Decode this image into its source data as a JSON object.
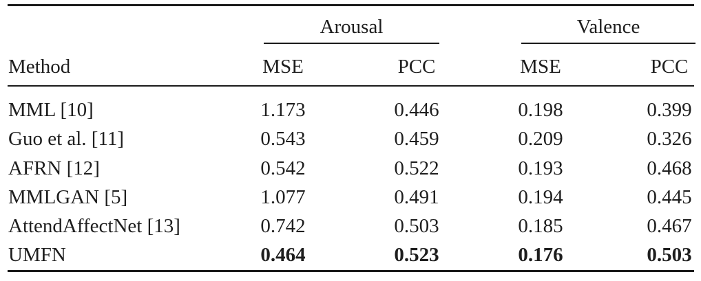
{
  "colors": {
    "background": "#ffffff",
    "text": "#1e1e1e",
    "rule": "#1a1a1a"
  },
  "table": {
    "group_headers": {
      "arousal": "Arousal",
      "valence": "Valence"
    },
    "col_headers": {
      "method": "Method",
      "arousal_mse": "MSE",
      "arousal_pcc": "PCC",
      "valence_mse": "MSE",
      "valence_pcc": "PCC"
    },
    "rows": [
      {
        "method": "MML [10]",
        "arousal_mse": "1.173",
        "arousal_pcc": "0.446",
        "valence_mse": "0.198",
        "valence_pcc": "0.399",
        "bold": false
      },
      {
        "method": "Guo et al. [11]",
        "arousal_mse": "0.543",
        "arousal_pcc": "0.459",
        "valence_mse": "0.209",
        "valence_pcc": "0.326",
        "bold": false
      },
      {
        "method": "AFRN [12]",
        "arousal_mse": "0.542",
        "arousal_pcc": "0.522",
        "valence_mse": "0.193",
        "valence_pcc": "0.468",
        "bold": false
      },
      {
        "method": "MMLGAN [5]",
        "arousal_mse": "1.077",
        "arousal_pcc": "0.491",
        "valence_mse": "0.194",
        "valence_pcc": "0.445",
        "bold": false
      },
      {
        "method": "AttendAffectNet [13]",
        "arousal_mse": "0.742",
        "arousal_pcc": "0.503",
        "valence_mse": "0.185",
        "valence_pcc": "0.467",
        "bold": false
      },
      {
        "method": "UMFN",
        "arousal_mse": "0.464",
        "arousal_pcc": "0.523",
        "valence_mse": "0.176",
        "valence_pcc": "0.503",
        "bold": true
      }
    ]
  }
}
